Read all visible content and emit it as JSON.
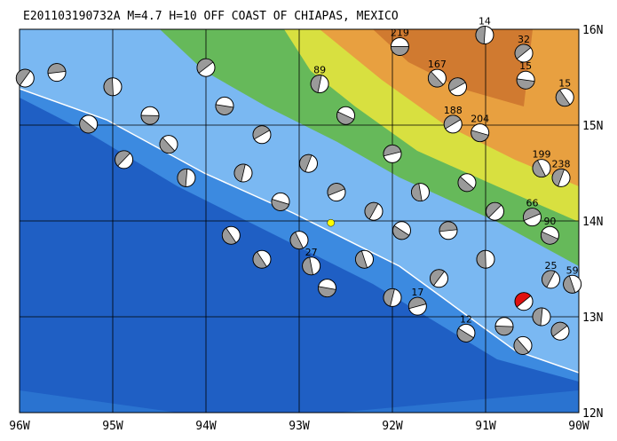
{
  "map": {
    "title": "E201103190732A M=4.7 H=10 OFF COAST OF CHIAPAS, MEXICO",
    "lon_ticks": [
      {
        "value": -96,
        "label": "96W"
      },
      {
        "value": -95,
        "label": "95W"
      },
      {
        "value": -94,
        "label": "94W"
      },
      {
        "value": -93,
        "label": "93W"
      },
      {
        "value": -92,
        "label": "92W"
      },
      {
        "value": -91,
        "label": "91W"
      },
      {
        "value": -90,
        "label": "90W"
      }
    ],
    "lat_ticks": [
      {
        "value": 16,
        "label": "16N"
      },
      {
        "value": 15,
        "label": "15N"
      },
      {
        "value": 14,
        "label": "14N"
      },
      {
        "value": 13,
        "label": "13N"
      },
      {
        "value": 12,
        "label": "12N"
      }
    ],
    "lonlim": [
      -96,
      -90
    ],
    "latlim": [
      12,
      16
    ],
    "main_event": {
      "lon": -90.59,
      "lat": 13.16
    },
    "epicenter": {
      "lon": -92.66,
      "lat": 13.98
    },
    "events": [
      {
        "label": "219",
        "lon": -91.92,
        "lat": 15.82
      },
      {
        "label": "167",
        "lon": -91.52,
        "lat": 15.49
      },
      {
        "label": "14",
        "lon": -91.01,
        "lat": 15.94
      },
      {
        "label": "32",
        "lon": -90.59,
        "lat": 15.75
      },
      {
        "label": "15",
        "lon": -90.57,
        "lat": 15.47
      },
      {
        "label": "15",
        "lon": -90.15,
        "lat": 15.29
      },
      {
        "label": "89",
        "lon": -92.78,
        "lat": 15.43
      },
      {
        "label": "188",
        "lon": -91.35,
        "lat": 15.01
      },
      {
        "label": "204",
        "lon": -91.06,
        "lat": 14.92
      },
      {
        "label": "199",
        "lon": -90.4,
        "lat": 14.55
      },
      {
        "label": "238",
        "lon": -90.19,
        "lat": 14.45
      },
      {
        "label": "66",
        "lon": -90.5,
        "lat": 14.04
      },
      {
        "label": "90",
        "lon": -90.31,
        "lat": 13.85
      },
      {
        "label": "59",
        "lon": -90.07,
        "lat": 13.34
      },
      {
        "label": "25",
        "lon": -90.3,
        "lat": 13.39
      },
      {
        "label": "17",
        "lon": -91.73,
        "lat": 13.11
      },
      {
        "label": "12",
        "lon": -91.21,
        "lat": 12.83
      },
      {
        "label": "27",
        "lon": -92.87,
        "lat": 13.53
      },
      {
        "label": null,
        "lon": -95.94,
        "lat": 15.49
      },
      {
        "label": null,
        "lon": -95.6,
        "lat": 15.55
      },
      {
        "label": null,
        "lon": -95.26,
        "lat": 15.01
      },
      {
        "label": null,
        "lon": -95.0,
        "lat": 15.4
      },
      {
        "label": null,
        "lon": -94.88,
        "lat": 14.64
      },
      {
        "label": null,
        "lon": -94.6,
        "lat": 15.1
      },
      {
        "label": null,
        "lon": -94.4,
        "lat": 14.8
      },
      {
        "label": null,
        "lon": -94.21,
        "lat": 14.45
      },
      {
        "label": null,
        "lon": -94.0,
        "lat": 15.6
      },
      {
        "label": null,
        "lon": -93.8,
        "lat": 15.2
      },
      {
        "label": null,
        "lon": -93.73,
        "lat": 13.85
      },
      {
        "label": null,
        "lon": -93.6,
        "lat": 14.5
      },
      {
        "label": null,
        "lon": -93.4,
        "lat": 14.9
      },
      {
        "label": null,
        "lon": -93.2,
        "lat": 14.2
      },
      {
        "label": null,
        "lon": -93.0,
        "lat": 13.8
      },
      {
        "label": null,
        "lon": -92.9,
        "lat": 14.6
      },
      {
        "label": null,
        "lon": -92.6,
        "lat": 14.3
      },
      {
        "label": null,
        "lon": -92.5,
        "lat": 15.1
      },
      {
        "label": null,
        "lon": -92.3,
        "lat": 13.6
      },
      {
        "label": null,
        "lon": -92.2,
        "lat": 14.1
      },
      {
        "label": null,
        "lon": -92.0,
        "lat": 14.7
      },
      {
        "label": null,
        "lon": -91.9,
        "lat": 13.9
      },
      {
        "label": null,
        "lon": -91.7,
        "lat": 14.3
      },
      {
        "label": null,
        "lon": -91.5,
        "lat": 13.4
      },
      {
        "label": null,
        "lon": -91.4,
        "lat": 13.9
      },
      {
        "label": null,
        "lon": -91.2,
        "lat": 14.4
      },
      {
        "label": null,
        "lon": -91.0,
        "lat": 13.6
      },
      {
        "label": null,
        "lon": -90.9,
        "lat": 14.1
      },
      {
        "label": null,
        "lon": -90.8,
        "lat": 12.9
      },
      {
        "label": null,
        "lon": -90.6,
        "lat": 12.7
      },
      {
        "label": null,
        "lon": -90.4,
        "lat": 13.0
      },
      {
        "label": null,
        "lon": -90.2,
        "lat": 12.85
      },
      {
        "label": null,
        "lon": -92.7,
        "lat": 13.3
      },
      {
        "label": null,
        "lon": -93.4,
        "lat": 13.6
      },
      {
        "label": null,
        "lon": -92.0,
        "lat": 13.2
      },
      {
        "label": null,
        "lon": -91.3,
        "lat": 15.4
      }
    ]
  }
}
